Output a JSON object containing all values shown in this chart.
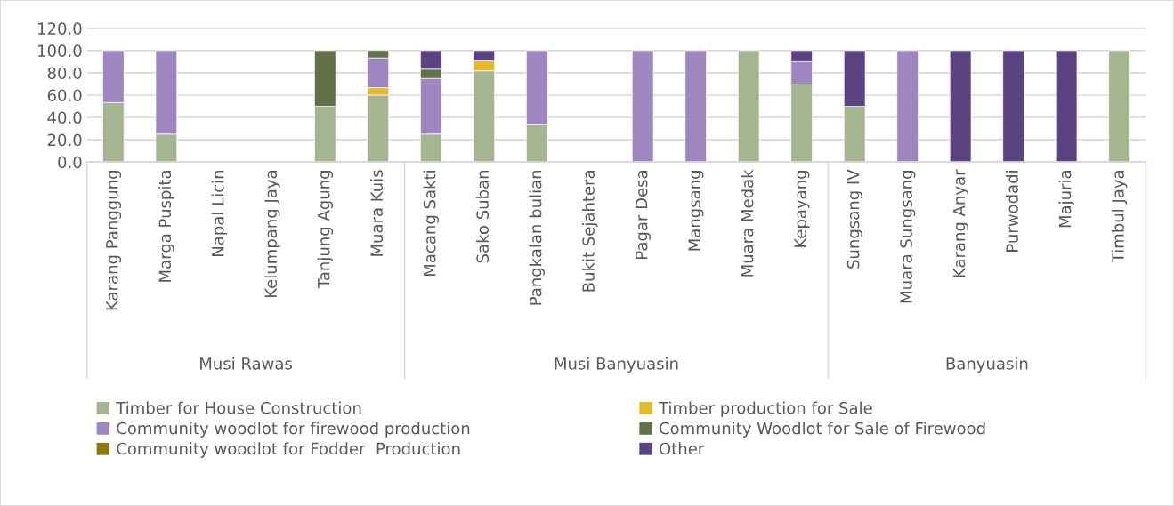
{
  "chart_data": {
    "type": "bar",
    "stacked": true,
    "categories": [
      "Karang Panggung",
      "Marga Puspita",
      "Napal Licin",
      "Kelumpang Jaya",
      "Tanjung Agung",
      "Muara Kuis",
      "Macang Sakti",
      "Sako Suban",
      "Pangkalan bulian",
      "Bukit Sejahtera",
      "Pagar Desa",
      "Mangsang",
      "Muara Medak",
      "Kepayang",
      "Sungsang IV",
      "Muara Sungsang",
      "Karang Anyar",
      "Purwodadi",
      "Majuria",
      "Timbul Jaya"
    ],
    "series": [
      {
        "name": "Timber for House Construction",
        "color": "#a5b592",
        "values": [
          53.3,
          25,
          null,
          null,
          50,
          60,
          25,
          81.8,
          33.3,
          null,
          null,
          null,
          100,
          70,
          50,
          null,
          null,
          null,
          null,
          100
        ]
      },
      {
        "name": "Timber production for Sale",
        "color": "#e6b92a",
        "values": [
          null,
          null,
          null,
          null,
          null,
          6.7,
          null,
          9.1,
          null,
          null,
          null,
          null,
          null,
          null,
          null,
          null,
          null,
          null,
          null,
          null
        ]
      },
      {
        "name": "Community woodlot for firewood production",
        "color": "#9e86c0",
        "values": [
          46.7,
          75,
          null,
          null,
          null,
          26.7,
          50,
          null,
          66.7,
          null,
          100,
          100,
          null,
          20,
          null,
          100,
          null,
          null,
          null,
          null
        ]
      },
      {
        "name": "Community Woodlot for Sale of Firewood",
        "color": "#637149",
        "values": [
          null,
          null,
          null,
          null,
          50,
          6.7,
          8.3,
          null,
          null,
          null,
          null,
          null,
          null,
          null,
          null,
          null,
          null,
          null,
          null,
          null
        ]
      },
      {
        "name": "Community woodlot for Fodder  Production",
        "color": "#8a7a10",
        "values": [
          null,
          null,
          null,
          null,
          null,
          null,
          null,
          null,
          null,
          null,
          null,
          null,
          null,
          null,
          null,
          null,
          null,
          null,
          null,
          null
        ]
      },
      {
        "name": "Other",
        "color": "#5b4280",
        "values": [
          null,
          null,
          null,
          null,
          null,
          null,
          16.7,
          9.1,
          null,
          null,
          null,
          null,
          null,
          10,
          50,
          null,
          100,
          100,
          100,
          null
        ]
      }
    ],
    "ylim": [
      0,
      120
    ],
    "yticks": [
      {
        "value": 0,
        "label": "0.0"
      },
      {
        "value": 20,
        "label": "20.0"
      },
      {
        "value": 40,
        "label": "40.0"
      },
      {
        "value": 60,
        "label": "60.0"
      },
      {
        "value": 80,
        "label": "80.0"
      },
      {
        "value": 100,
        "label": "100.0"
      },
      {
        "value": 120,
        "label": "120.0"
      }
    ],
    "grid": "y",
    "legend": "bottom",
    "annotations": [
      "Musi Rawas",
      "Musi Banyuasin",
      "Banyuasin"
    ]
  }
}
